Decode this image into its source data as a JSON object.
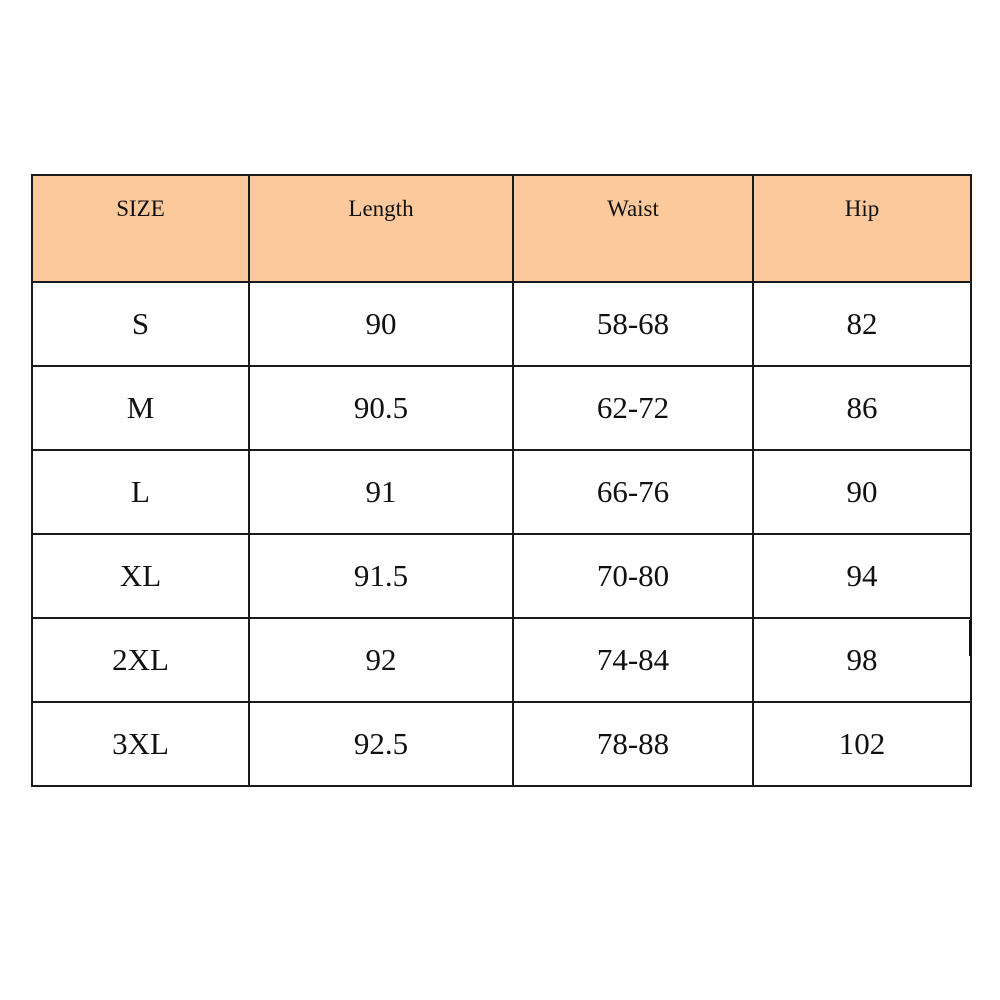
{
  "table": {
    "headers": [
      "SIZE",
      "Length",
      "Waist",
      "Hip"
    ],
    "header_color": "#fbc99b",
    "rows": [
      [
        "S",
        "90",
        "58-68",
        "82"
      ],
      [
        "M",
        "90.5",
        "62-72",
        "86"
      ],
      [
        "L",
        "91",
        "66-76",
        "90"
      ],
      [
        "XL",
        "91.5",
        "70-80",
        "94"
      ],
      [
        "2XL",
        "92",
        "74-84",
        "98"
      ],
      [
        "3XL",
        "92.5",
        "78-88",
        "102"
      ]
    ]
  }
}
